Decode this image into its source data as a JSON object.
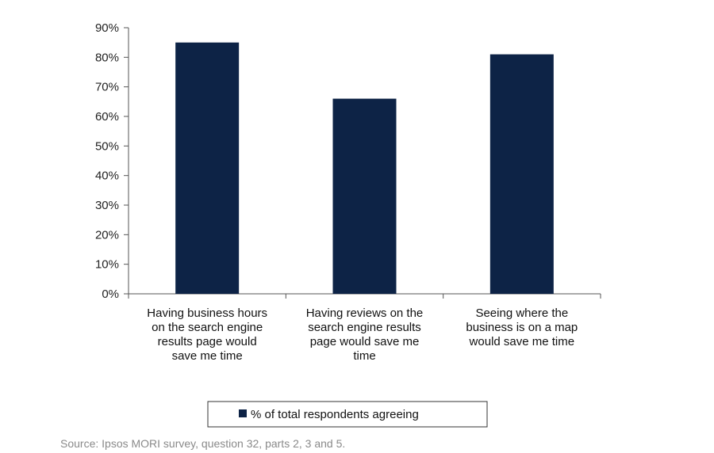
{
  "chart_data": {
    "type": "bar",
    "categories": [
      [
        "Having business hours",
        "on the search engine",
        "results page would",
        "save me time"
      ],
      [
        "Having reviews  on the",
        "search engine results",
        "page would save me",
        "time"
      ],
      [
        "Seeing where  the",
        "business is on a map",
        "would save me time"
      ]
    ],
    "series": [
      {
        "name": "% of total respondents agreeing",
        "values": [
          85,
          66,
          81
        ],
        "color": "#0d2346"
      }
    ],
    "ylim": [
      0,
      90
    ],
    "yticks": [
      0,
      10,
      20,
      30,
      40,
      50,
      60,
      70,
      80,
      90
    ],
    "ytick_suffix": "%",
    "grid": false,
    "legend_position": "bottom-center"
  },
  "footer": {
    "source": "Source: Ipsos MORI survey, question 32, parts 2, 3 and 5."
  }
}
